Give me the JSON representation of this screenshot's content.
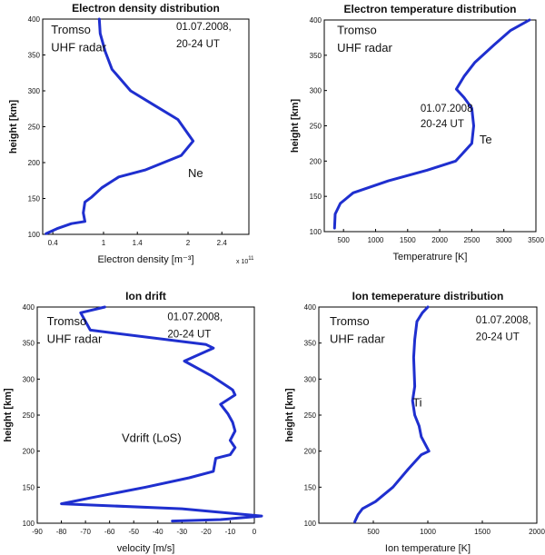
{
  "colors": {
    "curve": "#1f2fcf",
    "axes": "#000000"
  },
  "chart_data": [
    {
      "type": "line",
      "title": "Electron density distribution",
      "xlabel": "Electron density [m⁻³]",
      "ylabel": "height [km]",
      "x_multiplier": "x 10",
      "x_multiplier_exp": "11",
      "xlim": [
        0.28,
        2.72
      ],
      "ylim": [
        100,
        400
      ],
      "xticks": [
        {
          "v": 0.4,
          "label": "0.4"
        },
        {
          "v": 1,
          "label": "1"
        },
        {
          "v": 1.4,
          "label": "1.4"
        },
        {
          "v": 2,
          "label": "2"
        },
        {
          "v": 2.4,
          "label": "2.4"
        }
      ],
      "yticks": [
        {
          "v": 100,
          "label": "100"
        },
        {
          "v": 150,
          "label": "150"
        },
        {
          "v": 200,
          "label": "200"
        },
        {
          "v": 250,
          "label": "250"
        },
        {
          "v": 300,
          "label": "300"
        },
        {
          "v": 350,
          "label": "350"
        },
        {
          "v": 400,
          "label": "400"
        }
      ],
      "annotations": [
        {
          "text": "Tromso",
          "x": 0.38,
          "y": 380
        },
        {
          "text": "UHF radar",
          "x": 0.38,
          "y": 355
        },
        {
          "text": "01.07.2008,",
          "x": 1.86,
          "y": 385
        },
        {
          "text": "20-24 UT",
          "x": 1.86,
          "y": 361
        },
        {
          "text": "Ne",
          "x": 2.0,
          "y": 180
        }
      ],
      "series": [
        {
          "name": "Ne",
          "x": [
            0.95,
            0.96,
            1.02,
            1.1,
            1.32,
            1.6,
            1.88,
            2.06,
            1.92,
            1.5,
            1.18,
            0.98,
            0.86,
            0.78,
            0.76,
            0.78,
            0.62,
            0.45,
            0.32
          ],
          "y": [
            400,
            380,
            355,
            330,
            300,
            280,
            260,
            230,
            210,
            190,
            180,
            165,
            152,
            145,
            130,
            118,
            115,
            108,
            101
          ]
        }
      ]
    },
    {
      "type": "line",
      "title": "Electron temperature distribution",
      "xlabel": "Temperatrure [K]",
      "ylabel": "height [km]",
      "xlim": [
        200,
        3500
      ],
      "ylim": [
        100,
        400
      ],
      "xticks": [
        {
          "v": 500,
          "label": "500"
        },
        {
          "v": 1000,
          "label": "1000"
        },
        {
          "v": 1500,
          "label": "1500"
        },
        {
          "v": 2000,
          "label": "2000"
        },
        {
          "v": 2500,
          "label": "2500"
        },
        {
          "v": 3000,
          "label": "3000"
        },
        {
          "v": 3500,
          "label": "3500"
        }
      ],
      "yticks": [
        {
          "v": 100,
          "label": "100"
        },
        {
          "v": 150,
          "label": "150"
        },
        {
          "v": 200,
          "label": "200"
        },
        {
          "v": 250,
          "label": "250"
        },
        {
          "v": 300,
          "label": "300"
        },
        {
          "v": 350,
          "label": "350"
        },
        {
          "v": 400,
          "label": "400"
        }
      ],
      "annotations": [
        {
          "text": "Tromso",
          "x": 400,
          "y": 380
        },
        {
          "text": "UHF radar",
          "x": 400,
          "y": 355
        },
        {
          "text": "01.07.2008",
          "x": 1700,
          "y": 270
        },
        {
          "text": "20-24 UT",
          "x": 1700,
          "y": 248
        },
        {
          "text": "Te",
          "x": 2620,
          "y": 225
        }
      ],
      "series": [
        {
          "name": "Te",
          "x": [
            3400,
            3100,
            2850,
            2550,
            2380,
            2260,
            2380,
            2500,
            2530,
            2500,
            2250,
            1800,
            1200,
            650,
            450,
            370,
            360
          ],
          "y": [
            400,
            385,
            365,
            340,
            320,
            302,
            290,
            275,
            250,
            225,
            200,
            187,
            172,
            155,
            140,
            125,
            105
          ]
        }
      ]
    },
    {
      "type": "line",
      "title": "Ion drift",
      "xlabel": "velocity [m/s]",
      "ylabel": "height [km]",
      "xlim": [
        -90,
        0
      ],
      "ylim": [
        100,
        400
      ],
      "xticks": [
        {
          "v": -90,
          "label": "-90"
        },
        {
          "v": -80,
          "label": "-80"
        },
        {
          "v": -70,
          "label": "-70"
        },
        {
          "v": -60,
          "label": "-60"
        },
        {
          "v": -50,
          "label": "-50"
        },
        {
          "v": -40,
          "label": "-40"
        },
        {
          "v": -30,
          "label": "-30"
        },
        {
          "v": -20,
          "label": "-20"
        },
        {
          "v": -10,
          "label": "-10"
        },
        {
          "v": 0,
          "label": "0"
        }
      ],
      "yticks": [
        {
          "v": 100,
          "label": "100"
        },
        {
          "v": 150,
          "label": "150"
        },
        {
          "v": 200,
          "label": "200"
        },
        {
          "v": 250,
          "label": "250"
        },
        {
          "v": 300,
          "label": "300"
        },
        {
          "v": 350,
          "label": "350"
        },
        {
          "v": 400,
          "label": "400"
        }
      ],
      "annotations": [
        {
          "text": "Tromso",
          "x": -86,
          "y": 375
        },
        {
          "text": "UHF radar",
          "x": -86,
          "y": 350
        },
        {
          "text": "01.07.2008,",
          "x": -36,
          "y": 382
        },
        {
          "text": "20-24 UT",
          "x": -36,
          "y": 358
        },
        {
          "text": "Vdrift (LoS)",
          "x": -55,
          "y": 213
        }
      ],
      "series": [
        {
          "name": "Vdrift (LoS)",
          "x": [
            -62,
            -72,
            -68,
            -20,
            -17,
            -29,
            -18,
            -9,
            -8,
            -14,
            -11,
            -9,
            -8,
            -10,
            -8,
            -10,
            -16,
            -17,
            -27,
            -45,
            -68,
            -80,
            -30,
            3,
            -14,
            -34
          ],
          "y": [
            400,
            392,
            368,
            348,
            343,
            325,
            305,
            285,
            278,
            265,
            252,
            240,
            228,
            215,
            205,
            195,
            190,
            172,
            163,
            150,
            135,
            127,
            120,
            110,
            105,
            103
          ]
        }
      ]
    },
    {
      "type": "line",
      "title": "Ion temeperature distribution",
      "xlabel": "Ion temperature [K]",
      "ylabel": "height [km]",
      "xlim": [
        0,
        2000
      ],
      "ylim": [
        100,
        400
      ],
      "xticks": [
        {
          "v": 500,
          "label": "500"
        },
        {
          "v": 1000,
          "label": "1000"
        },
        {
          "v": 1500,
          "label": "1500"
        },
        {
          "v": 2000,
          "label": "2000"
        }
      ],
      "yticks": [
        {
          "v": 100,
          "label": "100"
        },
        {
          "v": 150,
          "label": "150"
        },
        {
          "v": 200,
          "label": "200"
        },
        {
          "v": 250,
          "label": "250"
        },
        {
          "v": 300,
          "label": "300"
        },
        {
          "v": 350,
          "label": "350"
        },
        {
          "v": 400,
          "label": "400"
        }
      ],
      "annotations": [
        {
          "text": "Tromso",
          "x": 100,
          "y": 375
        },
        {
          "text": "UHF radar",
          "x": 100,
          "y": 350
        },
        {
          "text": "01.07.2008,",
          "x": 1440,
          "y": 377
        },
        {
          "text": "20-24 UT",
          "x": 1440,
          "y": 354
        },
        {
          "text": "Ti",
          "x": 860,
          "y": 262
        }
      ],
      "series": [
        {
          "name": "Ti",
          "x": [
            1000,
            950,
            900,
            880,
            870,
            875,
            880,
            860,
            880,
            920,
            940,
            1010,
            940,
            820,
            680,
            520,
            400,
            360,
            330
          ],
          "y": [
            400,
            392,
            380,
            355,
            330,
            310,
            290,
            270,
            250,
            235,
            220,
            200,
            195,
            175,
            150,
            130,
            120,
            112,
            102
          ]
        }
      ]
    }
  ]
}
